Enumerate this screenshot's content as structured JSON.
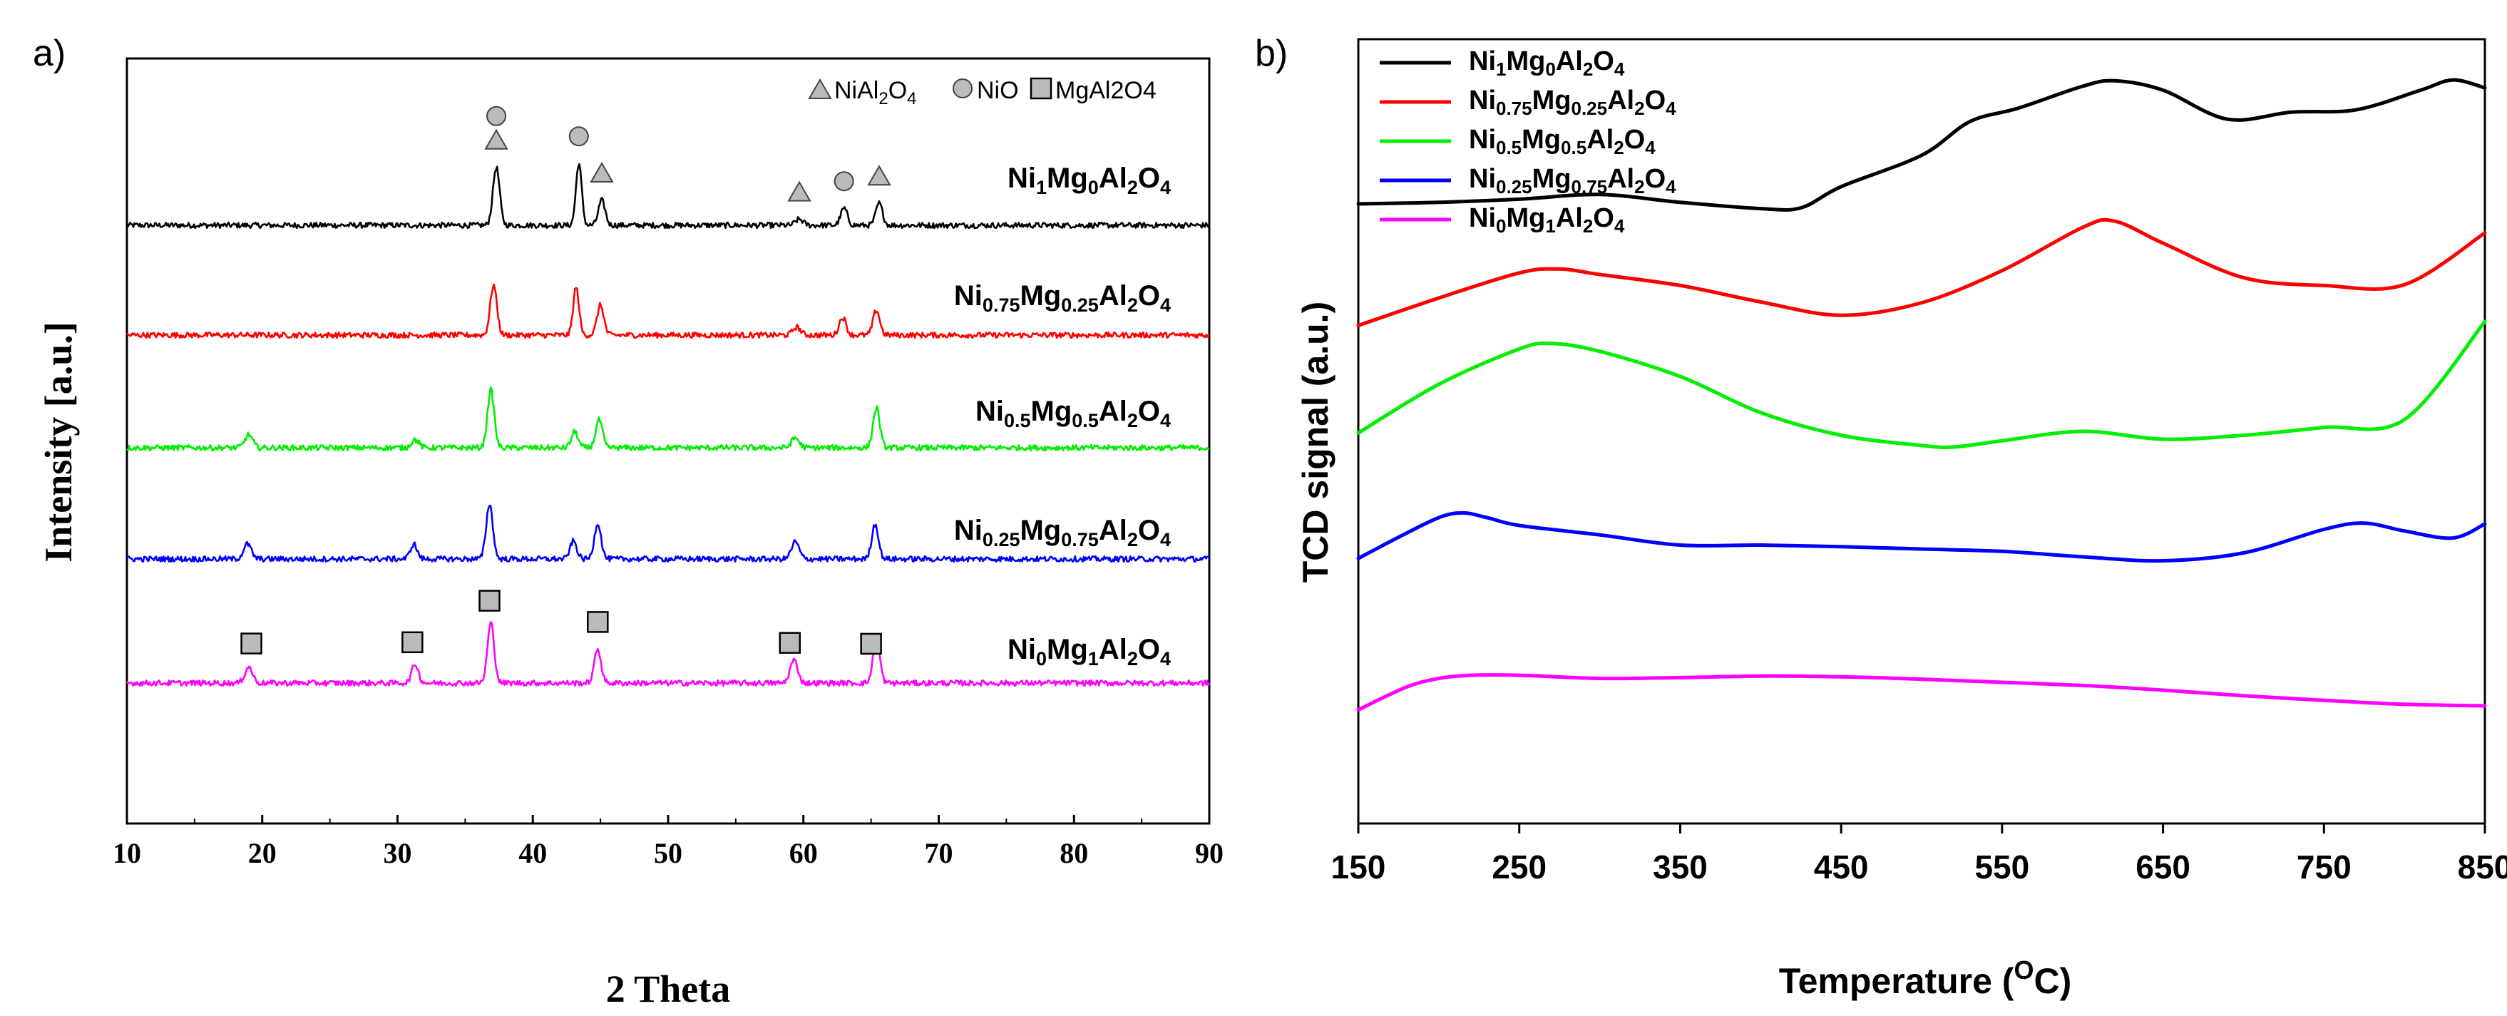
{
  "panels": [
    {
      "id": "a",
      "panel_label": "a)",
      "legend_items": [
        {
          "marker": "triangle",
          "label_base": "NiAl",
          "sub1": "2",
          "mid": "O",
          "sub2": "4"
        },
        {
          "marker": "circle",
          "label_plain": "NiO"
        },
        {
          "marker": "square",
          "label_plain": "MgAl2O4"
        }
      ],
      "series_labels": [
        {
          "parts": [
            [
              "Ni",
              ""
            ],
            [
              "1",
              "sub"
            ],
            [
              "Mg",
              ""
            ],
            [
              "0",
              "sub"
            ],
            [
              "Al",
              ""
            ],
            [
              "2",
              "sub"
            ],
            [
              "O",
              ""
            ],
            [
              "4",
              "sub"
            ]
          ]
        },
        {
          "parts": [
            [
              "Ni",
              ""
            ],
            [
              "0.75",
              "sub"
            ],
            [
              "Mg",
              ""
            ],
            [
              "0.25",
              "sub"
            ],
            [
              "Al",
              ""
            ],
            [
              "2",
              "sub"
            ],
            [
              "O",
              ""
            ],
            [
              "4",
              "sub"
            ]
          ]
        },
        {
          "parts": [
            [
              "Ni",
              ""
            ],
            [
              "0.5",
              "sub"
            ],
            [
              "Mg",
              ""
            ],
            [
              "0.5",
              "sub"
            ],
            [
              "Al",
              ""
            ],
            [
              "2",
              "sub"
            ],
            [
              "O",
              ""
            ],
            [
              "4",
              "sub"
            ]
          ]
        },
        {
          "parts": [
            [
              "Ni",
              ""
            ],
            [
              "0.25",
              "sub"
            ],
            [
              "Mg",
              ""
            ],
            [
              "0.75",
              "sub"
            ],
            [
              "Al",
              ""
            ],
            [
              "2",
              "sub"
            ],
            [
              "O",
              ""
            ],
            [
              "4",
              "sub"
            ]
          ]
        },
        {
          "parts": [
            [
              "Ni",
              ""
            ],
            [
              "0",
              "sub"
            ],
            [
              "Mg",
              ""
            ],
            [
              "1",
              "sub"
            ],
            [
              "Al",
              ""
            ],
            [
              "2",
              "sub"
            ],
            [
              "O",
              ""
            ],
            [
              "4",
              "sub"
            ]
          ]
        }
      ]
    },
    {
      "id": "b",
      "panel_label": "b)",
      "legend_labels": [
        {
          "parts": [
            [
              "Ni",
              ""
            ],
            [
              "1",
              "sub"
            ],
            [
              "Mg",
              ""
            ],
            [
              "0",
              "sub"
            ],
            [
              "Al",
              ""
            ],
            [
              "2",
              "sub"
            ],
            [
              "O",
              ""
            ],
            [
              "4",
              "sub"
            ]
          ]
        },
        {
          "parts": [
            [
              "Ni",
              ""
            ],
            [
              "0.75",
              "sub"
            ],
            [
              "Mg",
              ""
            ],
            [
              "0.25",
              "sub"
            ],
            [
              "Al",
              ""
            ],
            [
              "2",
              "sub"
            ],
            [
              "O",
              ""
            ],
            [
              "4",
              "sub"
            ]
          ]
        },
        {
          "parts": [
            [
              "Ni",
              ""
            ],
            [
              "0.5",
              "sub"
            ],
            [
              "Mg",
              ""
            ],
            [
              "0.5",
              "sub"
            ],
            [
              "Al",
              ""
            ],
            [
              "2",
              "sub"
            ],
            [
              "O",
              ""
            ],
            [
              "4",
              "sub"
            ]
          ]
        },
        {
          "parts": [
            [
              "Ni",
              ""
            ],
            [
              "0.25",
              "sub"
            ],
            [
              "Mg",
              ""
            ],
            [
              "0.75",
              "sub"
            ],
            [
              "Al",
              ""
            ],
            [
              "2",
              "sub"
            ],
            [
              "O",
              ""
            ],
            [
              "4",
              "sub"
            ]
          ]
        },
        {
          "parts": [
            [
              "Ni",
              ""
            ],
            [
              "0",
              "sub"
            ],
            [
              "Mg",
              ""
            ],
            [
              "1",
              "sub"
            ],
            [
              "Al",
              ""
            ],
            [
              "2",
              "sub"
            ],
            [
              "O",
              ""
            ],
            [
              "4",
              "sub"
            ]
          ]
        }
      ],
      "xlabel_pre": "Temperature (",
      "xlabel_sup": "O",
      "xlabel_post": "C)"
    }
  ],
  "colors": {
    "black": "#000000",
    "red": "#ff0000",
    "green": "#00ee00",
    "blue": "#0000ff",
    "magenta": "#ff00ff",
    "marker_fill": "#bbbbbb",
    "marker_stroke": "#444444"
  },
  "chart_data": [
    {
      "type": "line",
      "panel": "a",
      "xlabel": "2 Theta",
      "ylabel": "Intensity [a.u.]",
      "xlim": [
        10,
        90
      ],
      "xticks": [
        10,
        20,
        30,
        40,
        50,
        60,
        70,
        80,
        90
      ],
      "y_ticks_shown": false,
      "series": [
        {
          "offset": 4.0,
          "color": "#000000",
          "peaks": [
            [
              37.3,
              0.58,
              0.35
            ],
            [
              43.4,
              0.62,
              0.3
            ],
            [
              45.1,
              0.25,
              0.35
            ],
            [
              59.7,
              0.06,
              0.4
            ],
            [
              63.0,
              0.17,
              0.35
            ],
            [
              65.6,
              0.22,
              0.35
            ]
          ]
        },
        {
          "offset": 3.0,
          "color": "#ff0000",
          "peaks": [
            [
              37.1,
              0.5,
              0.35
            ],
            [
              43.2,
              0.48,
              0.3
            ],
            [
              45.0,
              0.3,
              0.35
            ],
            [
              59.5,
              0.08,
              0.4
            ],
            [
              62.9,
              0.18,
              0.35
            ],
            [
              65.4,
              0.25,
              0.35
            ]
          ]
        },
        {
          "offset": 2.0,
          "color": "#00ee00",
          "peaks": [
            [
              19.0,
              0.13,
              0.4
            ],
            [
              31.3,
              0.08,
              0.4
            ],
            [
              36.9,
              0.58,
              0.35
            ],
            [
              43.1,
              0.16,
              0.35
            ],
            [
              44.9,
              0.28,
              0.35
            ],
            [
              59.4,
              0.1,
              0.4
            ],
            [
              65.4,
              0.4,
              0.35
            ]
          ]
        },
        {
          "offset": 1.0,
          "color": "#0000ff",
          "peaks": [
            [
              18.9,
              0.15,
              0.4
            ],
            [
              31.2,
              0.15,
              0.35
            ],
            [
              36.8,
              0.55,
              0.35
            ],
            [
              43.0,
              0.18,
              0.35
            ],
            [
              44.8,
              0.36,
              0.35
            ],
            [
              59.4,
              0.17,
              0.4
            ],
            [
              65.3,
              0.35,
              0.35
            ]
          ]
        },
        {
          "offset": 0.0,
          "color": "#ff00ff",
          "peaks": [
            [
              19.0,
              0.16,
              0.4
            ],
            [
              31.3,
              0.19,
              0.35
            ],
            [
              36.9,
              0.6,
              0.35
            ],
            [
              44.8,
              0.34,
              0.35
            ],
            [
              59.3,
              0.23,
              0.4
            ],
            [
              65.4,
              0.45,
              0.35
            ]
          ]
        }
      ],
      "markers": [
        {
          "type": "triangle",
          "series": 0,
          "x": 37.3,
          "stack": 0
        },
        {
          "type": "circle",
          "series": 0,
          "x": 37.3,
          "stack": 1
        },
        {
          "type": "circle",
          "series": 0,
          "x": 43.4,
          "stack": 0
        },
        {
          "type": "triangle",
          "series": 0,
          "x": 45.1,
          "stack": 0
        },
        {
          "type": "triangle",
          "series": 0,
          "x": 59.7,
          "stack": 0
        },
        {
          "type": "circle",
          "series": 0,
          "x": 63.0,
          "stack": 0
        },
        {
          "type": "triangle",
          "series": 0,
          "x": 65.6,
          "stack": 0
        },
        {
          "type": "square",
          "series": 4,
          "x": 19.2,
          "stack": 0
        },
        {
          "type": "square",
          "series": 4,
          "x": 31.1,
          "stack": 0
        },
        {
          "type": "square",
          "series": 4,
          "x": 36.8,
          "stack": 0
        },
        {
          "type": "square",
          "series": 4,
          "x": 44.8,
          "stack": 0
        },
        {
          "type": "square",
          "series": 4,
          "x": 59.0,
          "stack": 0
        },
        {
          "type": "square",
          "series": 4,
          "x": 65.0,
          "stack": 0
        }
      ]
    },
    {
      "type": "line",
      "panel": "b",
      "xlabel": "Temperature (OC)",
      "ylabel": "TCD signal (a.u.)",
      "xlim": [
        150,
        850
      ],
      "xticks": [
        150,
        250,
        350,
        450,
        550,
        650,
        750,
        850
      ],
      "ylim": [
        0,
        10
      ],
      "y_ticks_shown": false,
      "series": [
        {
          "color": "#000000",
          "x": [
            150,
            200,
            250,
            300,
            350,
            400,
            425,
            450,
            500,
            530,
            560,
            600,
            620,
            650,
            690,
            730,
            770,
            810,
            830,
            850
          ],
          "y": [
            7.9,
            7.92,
            7.96,
            8.02,
            7.92,
            7.84,
            7.85,
            8.12,
            8.52,
            8.95,
            9.12,
            9.4,
            9.47,
            9.35,
            8.98,
            9.07,
            9.1,
            9.35,
            9.48,
            9.38
          ]
        },
        {
          "color": "#ff0000",
          "x": [
            150,
            200,
            250,
            275,
            300,
            350,
            400,
            450,
            500,
            550,
            600,
            620,
            650,
            700,
            750,
            800,
            850
          ],
          "y": [
            6.35,
            6.7,
            7.02,
            7.07,
            7.0,
            6.86,
            6.65,
            6.48,
            6.64,
            7.05,
            7.6,
            7.68,
            7.4,
            6.96,
            6.86,
            6.87,
            7.53
          ]
        },
        {
          "color": "#00ee00",
          "x": [
            150,
            200,
            250,
            270,
            300,
            350,
            400,
            450,
            500,
            520,
            550,
            600,
            650,
            700,
            750,
            800,
            850
          ],
          "y": [
            4.98,
            5.6,
            6.05,
            6.12,
            6.02,
            5.7,
            5.24,
            4.95,
            4.82,
            4.8,
            4.88,
            5.0,
            4.9,
            4.95,
            5.05,
            5.15,
            6.4
          ]
        },
        {
          "color": "#0000ff",
          "x": [
            150,
            175,
            200,
            215,
            230,
            250,
            300,
            350,
            400,
            450,
            500,
            550,
            600,
            650,
            700,
            750,
            775,
            800,
            830,
            850
          ],
          "y": [
            3.38,
            3.65,
            3.9,
            3.96,
            3.9,
            3.8,
            3.68,
            3.55,
            3.55,
            3.53,
            3.5,
            3.47,
            3.4,
            3.35,
            3.45,
            3.75,
            3.83,
            3.73,
            3.64,
            3.82
          ]
        },
        {
          "color": "#ff00ff",
          "x": [
            150,
            180,
            200,
            220,
            250,
            300,
            350,
            400,
            450,
            500,
            550,
            600,
            650,
            700,
            750,
            800,
            850
          ],
          "y": [
            1.45,
            1.74,
            1.85,
            1.89,
            1.89,
            1.85,
            1.86,
            1.88,
            1.87,
            1.84,
            1.8,
            1.76,
            1.7,
            1.63,
            1.57,
            1.52,
            1.5
          ]
        }
      ]
    }
  ]
}
